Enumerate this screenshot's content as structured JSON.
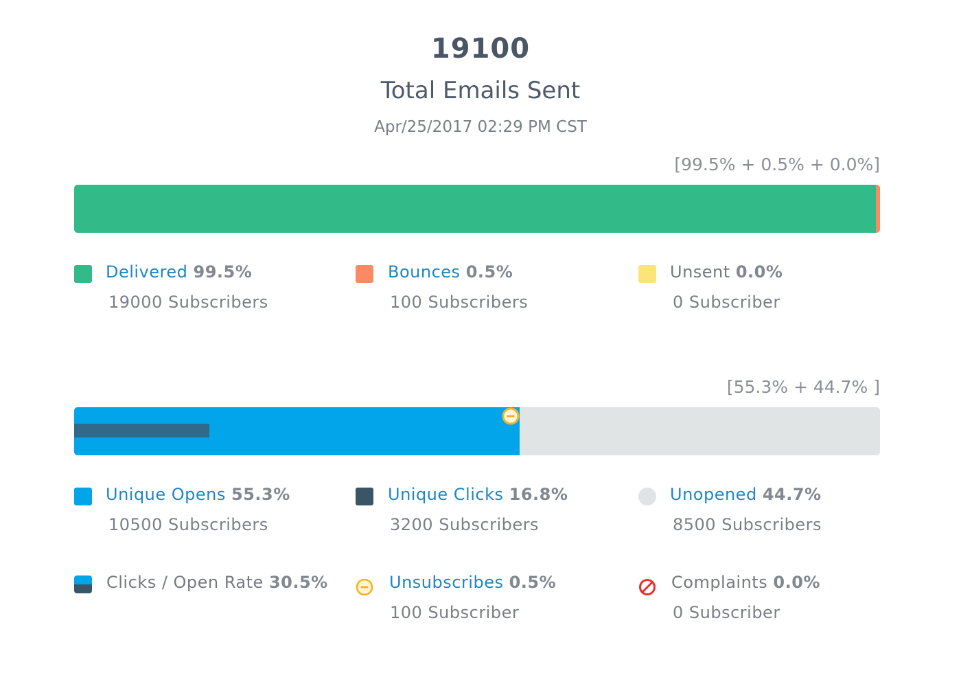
{
  "summary": {
    "total": "19100",
    "label": "Total Emails Sent",
    "timestamp": "Apr/25/2017 02:29 PM CST"
  },
  "delivery": {
    "bracket": "[99.5% + 0.5% + 0.0%]",
    "segments": [
      {
        "name": "Delivered",
        "percent": 99.5,
        "color": "#32bb88"
      },
      {
        "name": "Bounces",
        "percent": 0.5,
        "color": "#fb8a63"
      },
      {
        "name": "Unsent",
        "percent": 0.0,
        "color": "#fde47a"
      }
    ],
    "legend": {
      "delivered": {
        "label": "Delivered",
        "pct": "99.5%",
        "sub": "19000 Subscribers",
        "color": "#32bb88"
      },
      "bounces": {
        "label": "Bounces",
        "pct": "0.5%",
        "sub": "100 Subscribers",
        "color": "#fb8a63"
      },
      "unsent": {
        "label": "Unsent",
        "pct": "0.0%",
        "sub": "0 Subscriber",
        "color": "#fde47a"
      }
    }
  },
  "engagement": {
    "bracket": "[55.3% + 44.7% ]",
    "segments": [
      {
        "name": "Unique Opens",
        "percent": 55.3,
        "color": "#03a5ea"
      },
      {
        "name": "Unopened",
        "percent": 44.7,
        "color": "#e0e4e5"
      }
    ],
    "clicks_overlay": {
      "percent": 16.8,
      "color": "#30698a"
    },
    "unsubscribe_marker_percent": 54.2,
    "legend": {
      "unique_opens": {
        "label": "Unique Opens",
        "pct": "55.3%",
        "sub": "10500 Subscribers",
        "color": "#03a5ea"
      },
      "unique_clicks": {
        "label": "Unique Clicks",
        "pct": "16.8%",
        "sub": "3200 Subscribers",
        "color": "#3a5568"
      },
      "unopened": {
        "label": "Unopened",
        "pct": "44.7%",
        "sub": "8500 Subscribers",
        "color": "#e0e4e5"
      },
      "click_open_rate": {
        "label": "Clicks / Open Rate",
        "pct": "30.5%"
      },
      "unsubscribes": {
        "label": "Unsubscribes",
        "pct": "0.5%",
        "sub": "100 Subscriber",
        "icon": "unsubscribe-icon"
      },
      "complaints": {
        "label": "Complaints",
        "pct": "0.0%",
        "sub": "0 Subscriber",
        "icon": "prohibited-icon"
      }
    }
  }
}
